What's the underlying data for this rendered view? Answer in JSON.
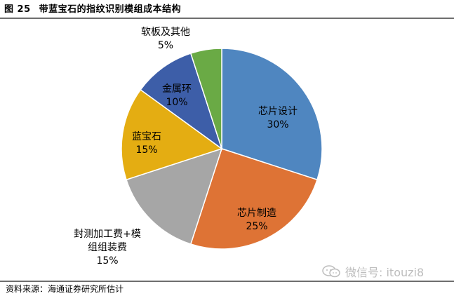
{
  "header": {
    "figure_number": "图 25",
    "title": "带蓝宝石的指纹识别模组成本结构"
  },
  "source": "资料来源：海通证券研究所估计",
  "watermark": "微信号: itouzi8",
  "chart_data": {
    "type": "pie",
    "title": "带蓝宝石的指纹识别模组成本结构",
    "start_angle_deg": 0,
    "direction": "clockwise",
    "slices": [
      {
        "label": "芯片设计",
        "value": 30,
        "value_label": "30%",
        "color": "#4f86c0"
      },
      {
        "label": "芯片制造",
        "value": 25,
        "value_label": "25%",
        "color": "#de7335"
      },
      {
        "label": "封测加工费+模组组装费",
        "label_lines": [
          "封测加工费+模",
          "组组装费"
        ],
        "value": 15,
        "value_label": "15%",
        "color": "#a6a6a6"
      },
      {
        "label": "蓝宝石",
        "value": 15,
        "value_label": "15%",
        "color": "#e4ad12"
      },
      {
        "label": "金属环",
        "value": 10,
        "value_label": "10%",
        "color": "#3d5ea8"
      },
      {
        "label": "软板及其他",
        "value": 5,
        "value_label": "5%",
        "color": "#6aaa45"
      }
    ]
  }
}
